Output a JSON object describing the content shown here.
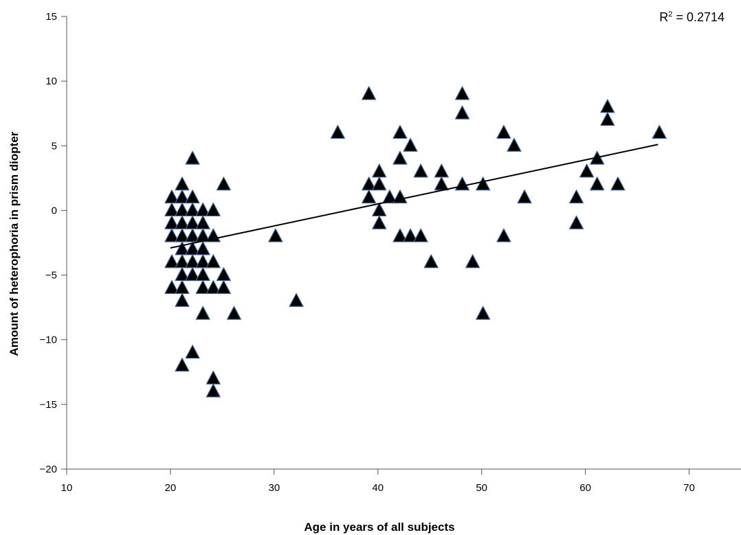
{
  "chart_data": {
    "type": "scatter",
    "xlabel": "Age in years of all subjects",
    "ylabel": "Amount of heterophoria in prism diopter",
    "annotation": {
      "r2_label": "R",
      "r2_sup": "2",
      "r2_value": " = 0.2714"
    },
    "xlim": [
      10,
      75
    ],
    "ylim": [
      -20,
      15
    ],
    "xticks": [
      10,
      20,
      30,
      40,
      50,
      60,
      70
    ],
    "yticks": [
      15,
      10,
      5,
      0,
      -5,
      -10,
      -15,
      -20
    ],
    "ytick_labels": [
      "15",
      "10",
      "5",
      "0",
      "−5",
      "−10",
      "−15",
      "−20"
    ],
    "marker": "triangle",
    "marker_fill": "#000000",
    "marker_edge": "#4a6b9a",
    "trendline": {
      "x": [
        20,
        67
      ],
      "y": [
        -2.9,
        5.1
      ]
    },
    "points": [
      [
        20,
        1
      ],
      [
        20,
        0
      ],
      [
        20,
        -1
      ],
      [
        20,
        -2
      ],
      [
        20,
        -4
      ],
      [
        20,
        -6
      ],
      [
        21,
        2
      ],
      [
        21,
        1
      ],
      [
        21,
        0
      ],
      [
        21,
        -1
      ],
      [
        21,
        -2
      ],
      [
        21,
        -3
      ],
      [
        21,
        -4
      ],
      [
        21,
        -5
      ],
      [
        21,
        -6
      ],
      [
        21,
        -7
      ],
      [
        21,
        -12
      ],
      [
        22,
        4
      ],
      [
        22,
        1
      ],
      [
        22,
        0
      ],
      [
        22,
        -1
      ],
      [
        22,
        -2
      ],
      [
        22,
        -3
      ],
      [
        22,
        -4
      ],
      [
        22,
        -5
      ],
      [
        22,
        -11
      ],
      [
        23,
        0
      ],
      [
        23,
        -1
      ],
      [
        23,
        -2
      ],
      [
        23,
        -3
      ],
      [
        23,
        -4
      ],
      [
        23,
        -5
      ],
      [
        23,
        -6
      ],
      [
        23,
        -8
      ],
      [
        24,
        0
      ],
      [
        24,
        -2
      ],
      [
        24,
        -4
      ],
      [
        24,
        -6
      ],
      [
        24,
        -13
      ],
      [
        24,
        -14
      ],
      [
        25,
        2
      ],
      [
        25,
        -5
      ],
      [
        25,
        -6
      ],
      [
        26,
        -8
      ],
      [
        30,
        -2
      ],
      [
        32,
        -7
      ],
      [
        36,
        6
      ],
      [
        39,
        9
      ],
      [
        39,
        2
      ],
      [
        39,
        1
      ],
      [
        40,
        3
      ],
      [
        40,
        2
      ],
      [
        40,
        0
      ],
      [
        40,
        -1
      ],
      [
        41,
        1
      ],
      [
        42,
        6
      ],
      [
        42,
        4
      ],
      [
        42,
        1
      ],
      [
        42,
        -2
      ],
      [
        43,
        5
      ],
      [
        43,
        -2
      ],
      [
        44,
        3
      ],
      [
        44,
        -2
      ],
      [
        45,
        -4
      ],
      [
        46,
        3
      ],
      [
        46,
        2
      ],
      [
        48,
        9
      ],
      [
        48,
        7.5
      ],
      [
        48,
        2
      ],
      [
        49,
        -4
      ],
      [
        50,
        2
      ],
      [
        50,
        -8
      ],
      [
        52,
        6
      ],
      [
        52,
        -2
      ],
      [
        53,
        5
      ],
      [
        54,
        1
      ],
      [
        59,
        1
      ],
      [
        59,
        -1
      ],
      [
        60,
        3
      ],
      [
        61,
        4
      ],
      [
        61,
        2
      ],
      [
        62,
        8
      ],
      [
        62,
        7
      ],
      [
        63,
        2
      ],
      [
        67,
        6
      ]
    ]
  }
}
